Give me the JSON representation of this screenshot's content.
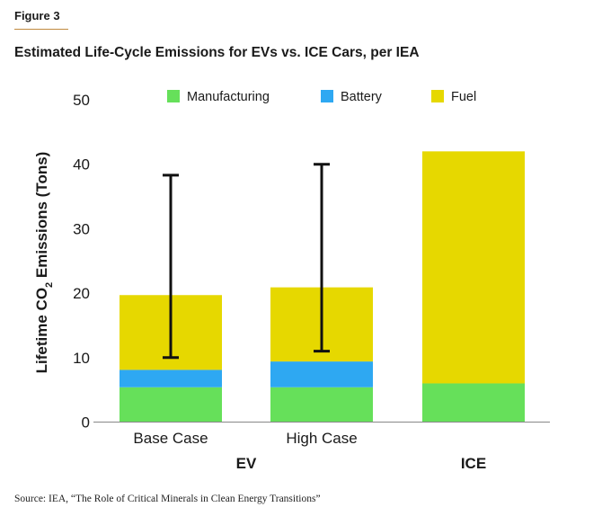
{
  "figure_label": "Figure 3",
  "source": "Source: IEA, “The Role of Critical Minerals in Clean Energy Transitions”",
  "colors": {
    "Manufacturing": "#66e05a",
    "Battery": "#2ea8f2",
    "Fuel": "#e6d800",
    "error_bar": "#111111",
    "accent_rule": "#c08a3e"
  },
  "chart_data": {
    "type": "bar",
    "stacked": true,
    "title": "Estimated Life-Cycle Emissions for EVs vs. ICE Cars, per IEA",
    "ylabel": "Lifetime CO2 Emissions (Tons)",
    "ylim": [
      0,
      50
    ],
    "yticks": [
      "0",
      "10",
      "20",
      "30",
      "40",
      "50"
    ],
    "categories": [
      "Base Case",
      "High Case",
      ""
    ],
    "groups": [
      {
        "label": "EV",
        "categories": [
          "Base Case",
          "High Case"
        ]
      },
      {
        "label": "ICE",
        "categories": [
          ""
        ]
      }
    ],
    "series": [
      {
        "name": "Manufacturing",
        "values": [
          5.4,
          5.4,
          6.0
        ]
      },
      {
        "name": "Battery",
        "values": [
          2.7,
          4.0,
          0
        ]
      },
      {
        "name": "Fuel",
        "values": [
          11.6,
          11.5,
          36.0
        ]
      }
    ],
    "error_bars": [
      {
        "category": "Base Case",
        "low": 10.0,
        "high": 38.3
      },
      {
        "category": "High Case",
        "low": 11.0,
        "high": 40.0
      }
    ],
    "legend_position": "top",
    "grid": false
  }
}
